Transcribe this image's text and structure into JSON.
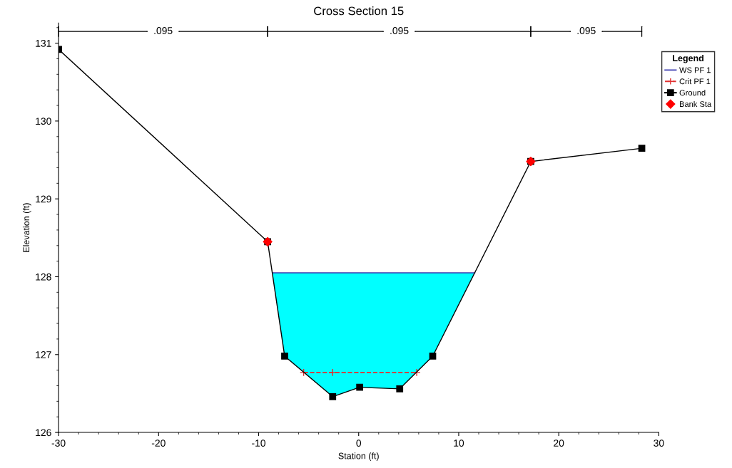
{
  "chart_data": {
    "type": "line",
    "title": "Cross Section 15",
    "xlabel": "Station (ft)",
    "ylabel": "Elevation (ft)",
    "legend_title": "Legend",
    "legend": "right",
    "grid": false,
    "xlim": [
      -30,
      30
    ],
    "xticks": [
      -30,
      -20,
      -10,
      0,
      10,
      20,
      30
    ],
    "ylim": [
      126,
      131.26
    ],
    "yticks": [
      126,
      127,
      128,
      129,
      130,
      131
    ],
    "series": [
      {
        "name": "WS PF 1",
        "type": "area",
        "color": "#00ffff",
        "x": [
          -8.6,
          11.6
        ],
        "values": [
          128.05,
          128.05
        ]
      },
      {
        "name": "Crit PF 1",
        "type": "line",
        "color": "#e03030",
        "line_style": "dashed",
        "marker": "cross",
        "x": [
          -5.5,
          -2.6,
          5.8
        ],
        "values": [
          126.77,
          126.77,
          126.77
        ]
      },
      {
        "name": "Ground",
        "type": "line",
        "color": "#000000",
        "line_style": "solid",
        "marker": "square",
        "x": [
          -30,
          -9.1,
          -7.4,
          -2.6,
          0.1,
          4.1,
          7.4,
          17.2,
          28.3
        ],
        "values": [
          130.92,
          128.45,
          126.98,
          126.46,
          126.58,
          126.56,
          126.98,
          129.48,
          129.65
        ]
      },
      {
        "name": "Bank Sta",
        "type": "scatter",
        "color": "#ff0000",
        "marker": "diamond",
        "x": [
          -9.1,
          17.2
        ],
        "values": [
          128.45,
          129.48
        ]
      }
    ],
    "annotations": [
      {
        "text": ".095",
        "x": -19.55,
        "y": 131.15
      },
      {
        "text": ".095",
        "x": 4.05,
        "y": 131.15
      },
      {
        "text": ".095",
        "x": 22.75,
        "y": 131.15
      }
    ]
  }
}
